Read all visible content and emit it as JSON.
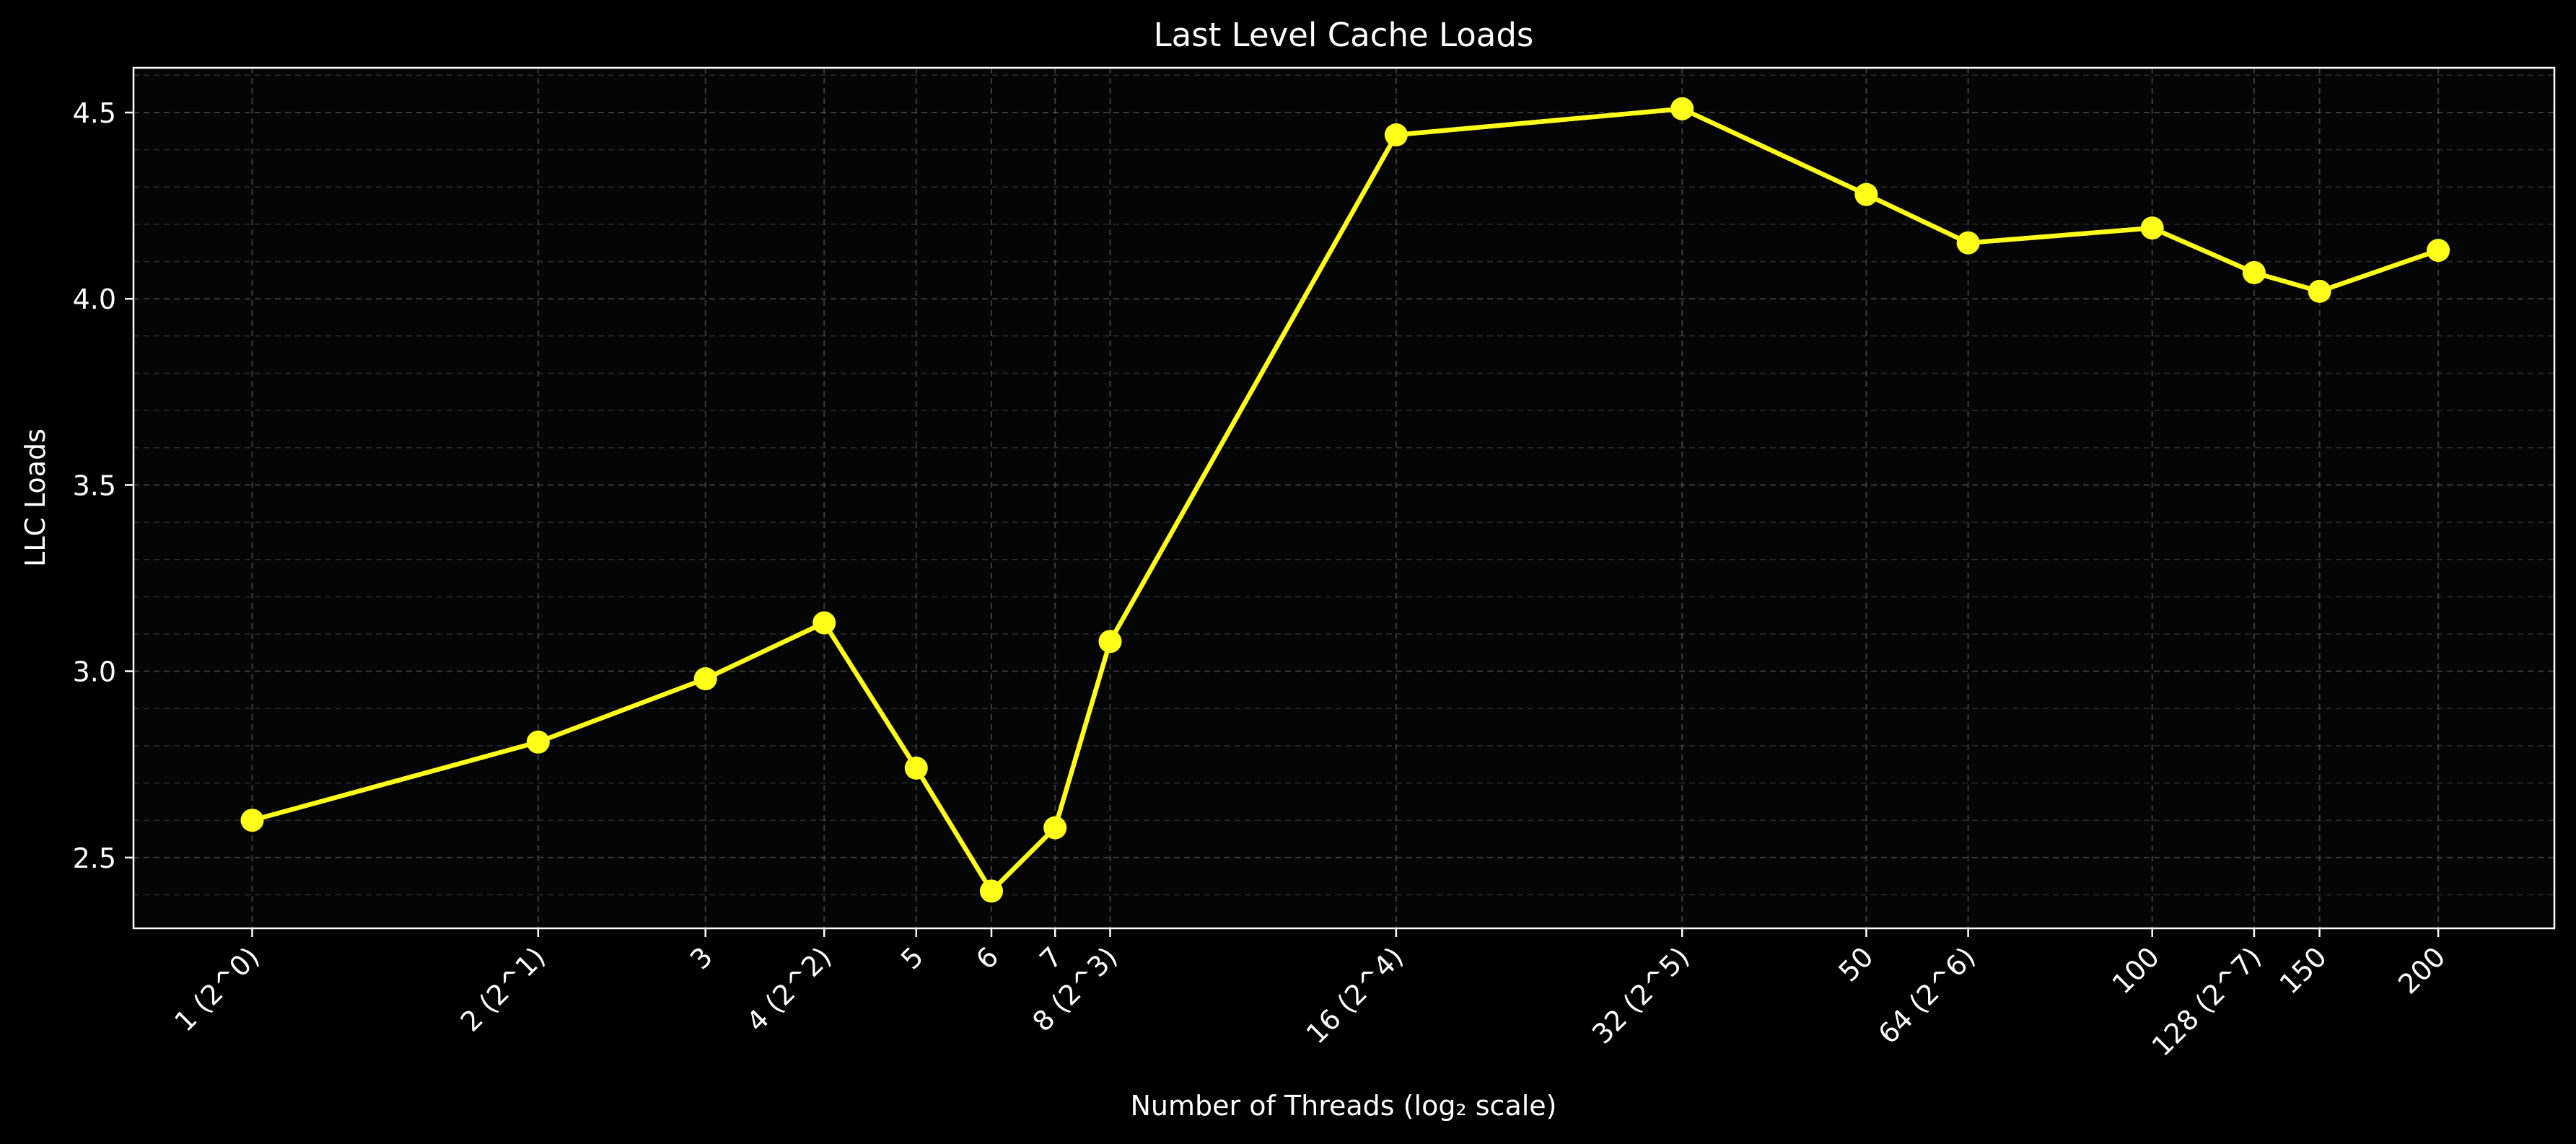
{
  "chart_data": {
    "type": "line",
    "title": "Last Level Cache Loads",
    "xlabel": "Number of Threads (log₂ scale)",
    "ylabel": "LLC Loads",
    "x_scale": "log2",
    "xlim": [
      0.75,
      265
    ],
    "ylim": [
      2.31,
      4.62
    ],
    "grid": true,
    "legend": "none",
    "x": [
      1,
      2,
      3,
      4,
      5,
      6,
      7,
      8,
      16,
      32,
      50,
      64,
      100,
      128,
      150,
      200
    ],
    "x_tick_labels": [
      "1 (2^0)",
      "2 (2^1)",
      "3",
      "4 (2^2)",
      "5",
      "6",
      "7",
      "8 (2^3)",
      "16 (2^4)",
      "32 (2^5)",
      "50",
      "64 (2^6)",
      "100",
      "128 (2^7)",
      "150",
      "200"
    ],
    "y_ticks": [
      2.5,
      3.0,
      3.5,
      4.0,
      4.5
    ],
    "y_tick_labels": [
      "2.5",
      "3.0",
      "3.5",
      "4.0",
      "4.5"
    ],
    "series": [
      {
        "values": [
          2.6,
          2.81,
          2.98,
          3.13,
          2.74,
          2.41,
          2.58,
          3.08,
          4.44,
          4.51,
          4.28,
          4.15,
          4.19,
          4.07,
          4.02,
          4.13
        ]
      }
    ]
  },
  "colors": {
    "background": "#000000",
    "plot_background": "#050505",
    "line": "#ffff1a",
    "grid": "#555555",
    "axes": "#ffffff"
  }
}
